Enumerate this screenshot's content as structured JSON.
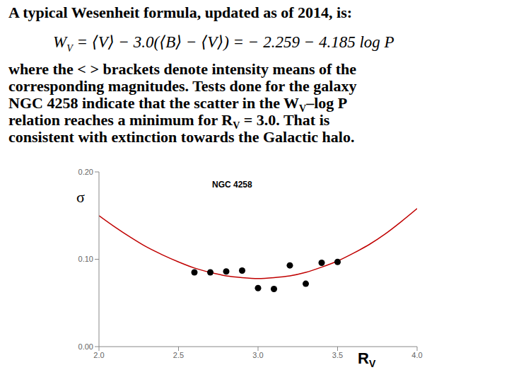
{
  "slide": {
    "heading": "A typical Wesenheit formula, updated as of 2014, is:",
    "formula": {
      "lhs": "W",
      "lhs_sub": "V",
      "rhs": " = ⟨V⟩ − 3.0(⟨B⟩ − ⟨V⟩) = − 2.259 − 4.185 log P"
    },
    "paragraph": [
      [
        {
          "text": "where the < > brackets denote intensity means of the"
        }
      ],
      [
        {
          "text": "corresponding magnitudes. Tests done for the galaxy"
        }
      ],
      [
        {
          "text": "NGC 4258 indicate that the scatter in the W"
        },
        {
          "sub": "V"
        },
        {
          "text": "–log P"
        }
      ],
      [
        {
          "text": "relation reaches a minimum for R"
        },
        {
          "sub": "V"
        },
        {
          "text": " = 3.0. That is"
        }
      ],
      [
        {
          "text": "consistent with extinction towards the Galactic halo."
        }
      ]
    ]
  },
  "chart_data": {
    "type": "scatter",
    "title": "NGC 4258",
    "y_label": "σ",
    "x_label": "R",
    "x_label_sub": "V",
    "x": [
      2.0,
      2.1,
      2.2,
      2.3,
      2.4,
      2.5,
      2.6,
      2.7,
      2.8,
      2.9,
      3.0,
      3.1,
      3.2,
      3.3,
      3.4,
      3.5,
      3.6,
      3.7,
      3.8,
      3.9,
      4.0
    ],
    "series": [
      {
        "type": "scatter",
        "color": "#000000",
        "marker": "circle",
        "values": [
          null,
          null,
          null,
          null,
          null,
          null,
          0.085,
          0.085,
          0.086,
          0.087,
          0.067,
          0.066,
          0.093,
          0.072,
          0.096,
          0.097,
          null,
          null,
          null,
          null,
          null
        ]
      },
      {
        "type": "line",
        "color": "#c00000",
        "line_style": "solid",
        "values": [
          0.15,
          0.137,
          0.125,
          0.114,
          0.105,
          0.097,
          0.09,
          0.085,
          0.081,
          0.079,
          0.078,
          0.079,
          0.081,
          0.085,
          0.091,
          0.098,
          0.107,
          0.117,
          0.129,
          0.143,
          0.158
        ]
      }
    ],
    "xlim": [
      2.0,
      4.0
    ],
    "xticks": [
      {
        "value": 2,
        "label": "2.0"
      },
      {
        "value": 2.5,
        "label": "2.5"
      },
      {
        "value": 3,
        "label": "3.0"
      },
      {
        "value": 3.5,
        "label": "3.5"
      },
      {
        "value": 4,
        "label": "4.0"
      }
    ],
    "ylim": [
      0,
      0.2
    ],
    "yticks": [
      {
        "value": 0,
        "label": "0.00"
      },
      {
        "value": 0.1,
        "label": "0.10"
      },
      {
        "value": 0.2,
        "label": "0.20"
      }
    ],
    "grid": false
  }
}
